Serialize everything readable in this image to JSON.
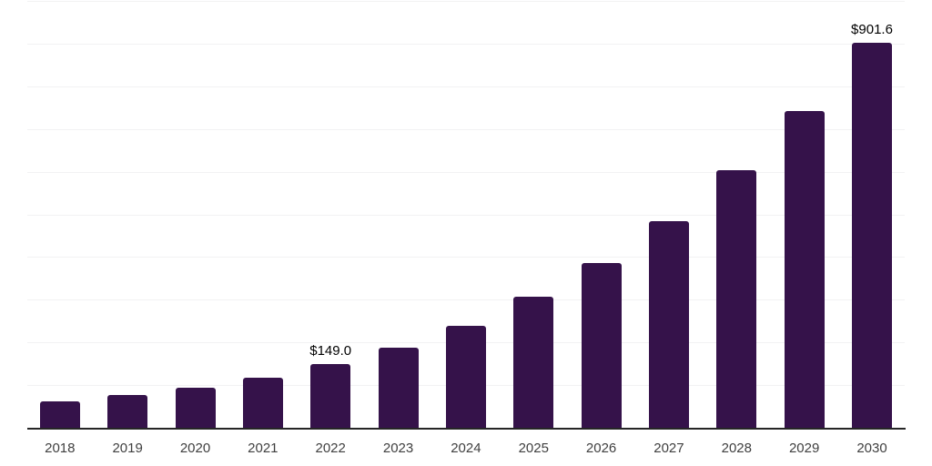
{
  "chart_style": {
    "background": "#ffffff",
    "bar_color": "#35124a",
    "grid_color": "#f2f2f3",
    "axis_color": "#262626",
    "tick_label_color": "#404040",
    "data_label_color": "#000000"
  },
  "chart_data": {
    "type": "bar",
    "title": "",
    "xlabel": "",
    "ylabel": "",
    "categories": [
      "2018",
      "2019",
      "2020",
      "2021",
      "2022",
      "2023",
      "2024",
      "2025",
      "2026",
      "2027",
      "2028",
      "2029",
      "2030"
    ],
    "values": [
      61,
      76,
      94,
      117,
      149.0,
      187,
      238,
      306,
      385,
      484,
      604,
      741,
      901.6
    ],
    "data_labels": [
      "",
      "",
      "",
      "",
      "$149.0",
      "",
      "",
      "",
      "",
      "",
      "",
      "",
      "$901.6"
    ],
    "ylim": [
      0,
      1000
    ],
    "grid_step": 100,
    "grid": "on",
    "legend": "none",
    "y_tick_labels_visible": false,
    "value_prefix": "$"
  }
}
